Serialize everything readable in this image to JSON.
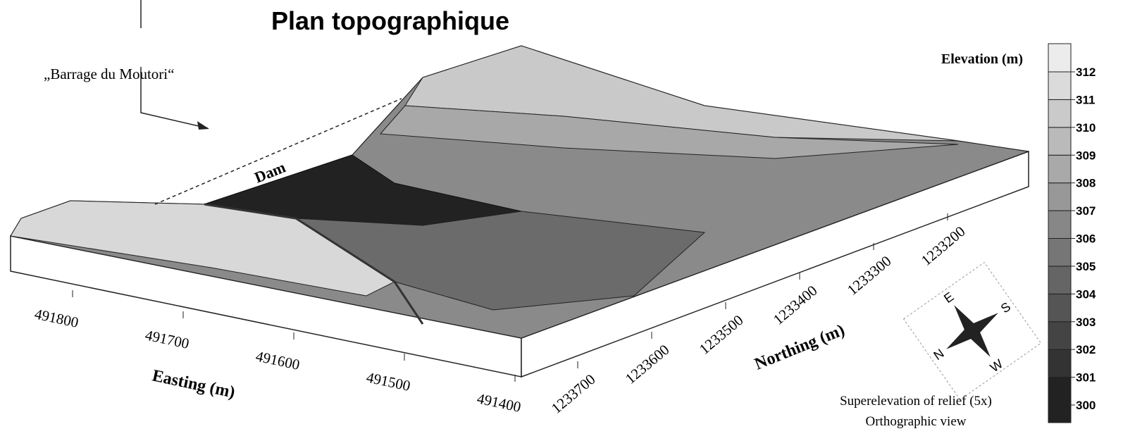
{
  "title": "Plan topographique",
  "annotation": "„Barrage du Moutori“",
  "dam_label": "Dam",
  "legend": {
    "title": "Elevation (m)",
    "ticks": [
      300,
      301,
      302,
      303,
      304,
      305,
      306,
      307,
      308,
      309,
      310,
      311,
      312
    ]
  },
  "easting": {
    "label": "Easting (m)",
    "ticks": [
      491800,
      491700,
      491600,
      491500,
      491400
    ]
  },
  "northing": {
    "label": "Northing (m)",
    "ticks": [
      1233700,
      1233600,
      1233500,
      1233400,
      1233300,
      1233200
    ]
  },
  "compass": {
    "east": "E",
    "south": "S",
    "north": "N",
    "west": "W"
  },
  "notes": [
    "Superelevation of relief (5x)",
    "Orthographic view"
  ]
}
